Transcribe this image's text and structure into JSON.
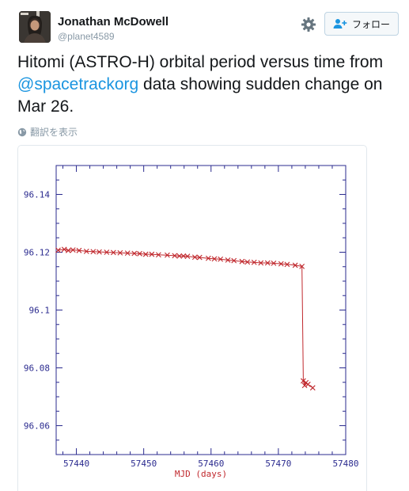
{
  "user": {
    "name": "Jonathan McDowell",
    "handle": "@planet4589"
  },
  "follow_button": {
    "label": "フォロー"
  },
  "tweet": {
    "text_before": "Hitomi (ASTRO-H) orbital period versus time from ",
    "mention": "@spacetrackorg",
    "text_after": " data showing sudden change on Mar 26."
  },
  "translate": {
    "label": "翻訳を表示"
  },
  "icons": {
    "settings": "gear-icon",
    "follow": "add-user-icon",
    "translate": "globe-icon"
  },
  "colors": {
    "accent": "#1b95e0",
    "axis": "#2b2b8f",
    "series": "#c0282d",
    "xlabel": "#c0282d"
  },
  "chart_data": {
    "type": "line",
    "xlabel": "MJD (days)",
    "ylabel": "",
    "xlim": [
      57437,
      57480
    ],
    "ylim": [
      96.05,
      96.15
    ],
    "x_ticks": [
      57440,
      57450,
      57460,
      57470,
      57480
    ],
    "y_ticks": [
      96.06,
      96.08,
      96.1,
      96.12,
      96.14
    ],
    "y_tick_labels": [
      "96.06",
      "96.08",
      "96.1",
      "96.12",
      "96.14"
    ],
    "grid": false,
    "series": [
      {
        "marker": "x",
        "x": [
          57437.3,
          57438.2,
          57438.8,
          57439.5,
          57440.4,
          57441.5,
          57442.5,
          57443.4,
          57444.5,
          57445.5,
          57446.5,
          57447.6,
          57448.6,
          57449.4,
          57450.3,
          57451.2,
          57452.2,
          57453.5,
          57454.6,
          57455.3,
          57455.9,
          57456.5,
          57457.6,
          57458.3,
          57459.6,
          57460.5,
          57461.4,
          57462.5,
          57463.4,
          57464.6,
          57465.4,
          57466.4,
          57467.4,
          57468.4,
          57469.3,
          57470.4,
          57471.3,
          57472.5,
          57473.5,
          57473.7,
          57473.9,
          57474.1,
          57474.4,
          57475.1
        ],
        "y": [
          96.1207,
          96.121,
          96.1206,
          96.1208,
          96.1206,
          96.1203,
          96.1202,
          96.1201,
          96.12,
          96.1199,
          96.1198,
          96.1197,
          96.1196,
          96.1195,
          96.1193,
          96.1193,
          96.1191,
          96.119,
          96.1188,
          96.1187,
          96.1187,
          96.1186,
          96.1183,
          96.1182,
          96.1179,
          96.1177,
          96.1176,
          96.1173,
          96.1171,
          96.1168,
          96.1166,
          96.1165,
          96.1163,
          96.1163,
          96.1162,
          96.116,
          96.1158,
          96.1155,
          96.1151,
          96.0755,
          96.0739,
          96.0749,
          96.0743,
          96.0731
        ]
      }
    ]
  }
}
